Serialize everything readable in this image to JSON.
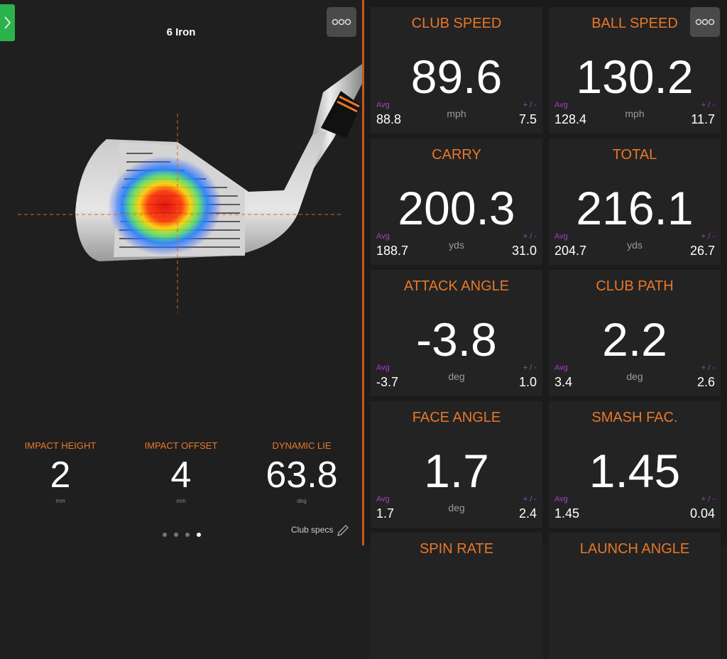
{
  "left": {
    "title": "6 Iron",
    "stats": [
      {
        "label": "IMPACT HEIGHT",
        "value": "2",
        "unit": "mm"
      },
      {
        "label": "IMPACT OFFSET",
        "value": "4",
        "unit": "mm"
      },
      {
        "label": "DYNAMIC LIE",
        "value": "63.8",
        "unit": "deg"
      }
    ],
    "club_specs": "Club specs"
  },
  "avg_label": "Avg",
  "pm_label": "+ / -",
  "tiles": [
    {
      "title": "CLUB SPEED",
      "value": "89.6",
      "unit": "mph",
      "avg": "88.8",
      "pm": "7.5"
    },
    {
      "title": "BALL SPEED",
      "value": "130.2",
      "unit": "mph",
      "avg": "128.4",
      "pm": "11.7"
    },
    {
      "title": "CARRY",
      "value": "200.3",
      "unit": "yds",
      "avg": "188.7",
      "pm": "31.0"
    },
    {
      "title": "TOTAL",
      "value": "216.1",
      "unit": "yds",
      "avg": "204.7",
      "pm": "26.7"
    },
    {
      "title": "ATTACK ANGLE",
      "value": "-3.8",
      "unit": "deg",
      "avg": "-3.7",
      "pm": "1.0"
    },
    {
      "title": "CLUB PATH",
      "value": "2.2",
      "unit": "deg",
      "avg": "3.4",
      "pm": "2.6"
    },
    {
      "title": "FACE ANGLE",
      "value": "1.7",
      "unit": "deg",
      "avg": "1.7",
      "pm": "2.4"
    },
    {
      "title": "SMASH FAC.",
      "value": "1.45",
      "unit": "",
      "avg": "1.45",
      "pm": "0.04"
    },
    {
      "title": "SPIN RATE"
    },
    {
      "title": "LAUNCH ANGLE"
    }
  ]
}
